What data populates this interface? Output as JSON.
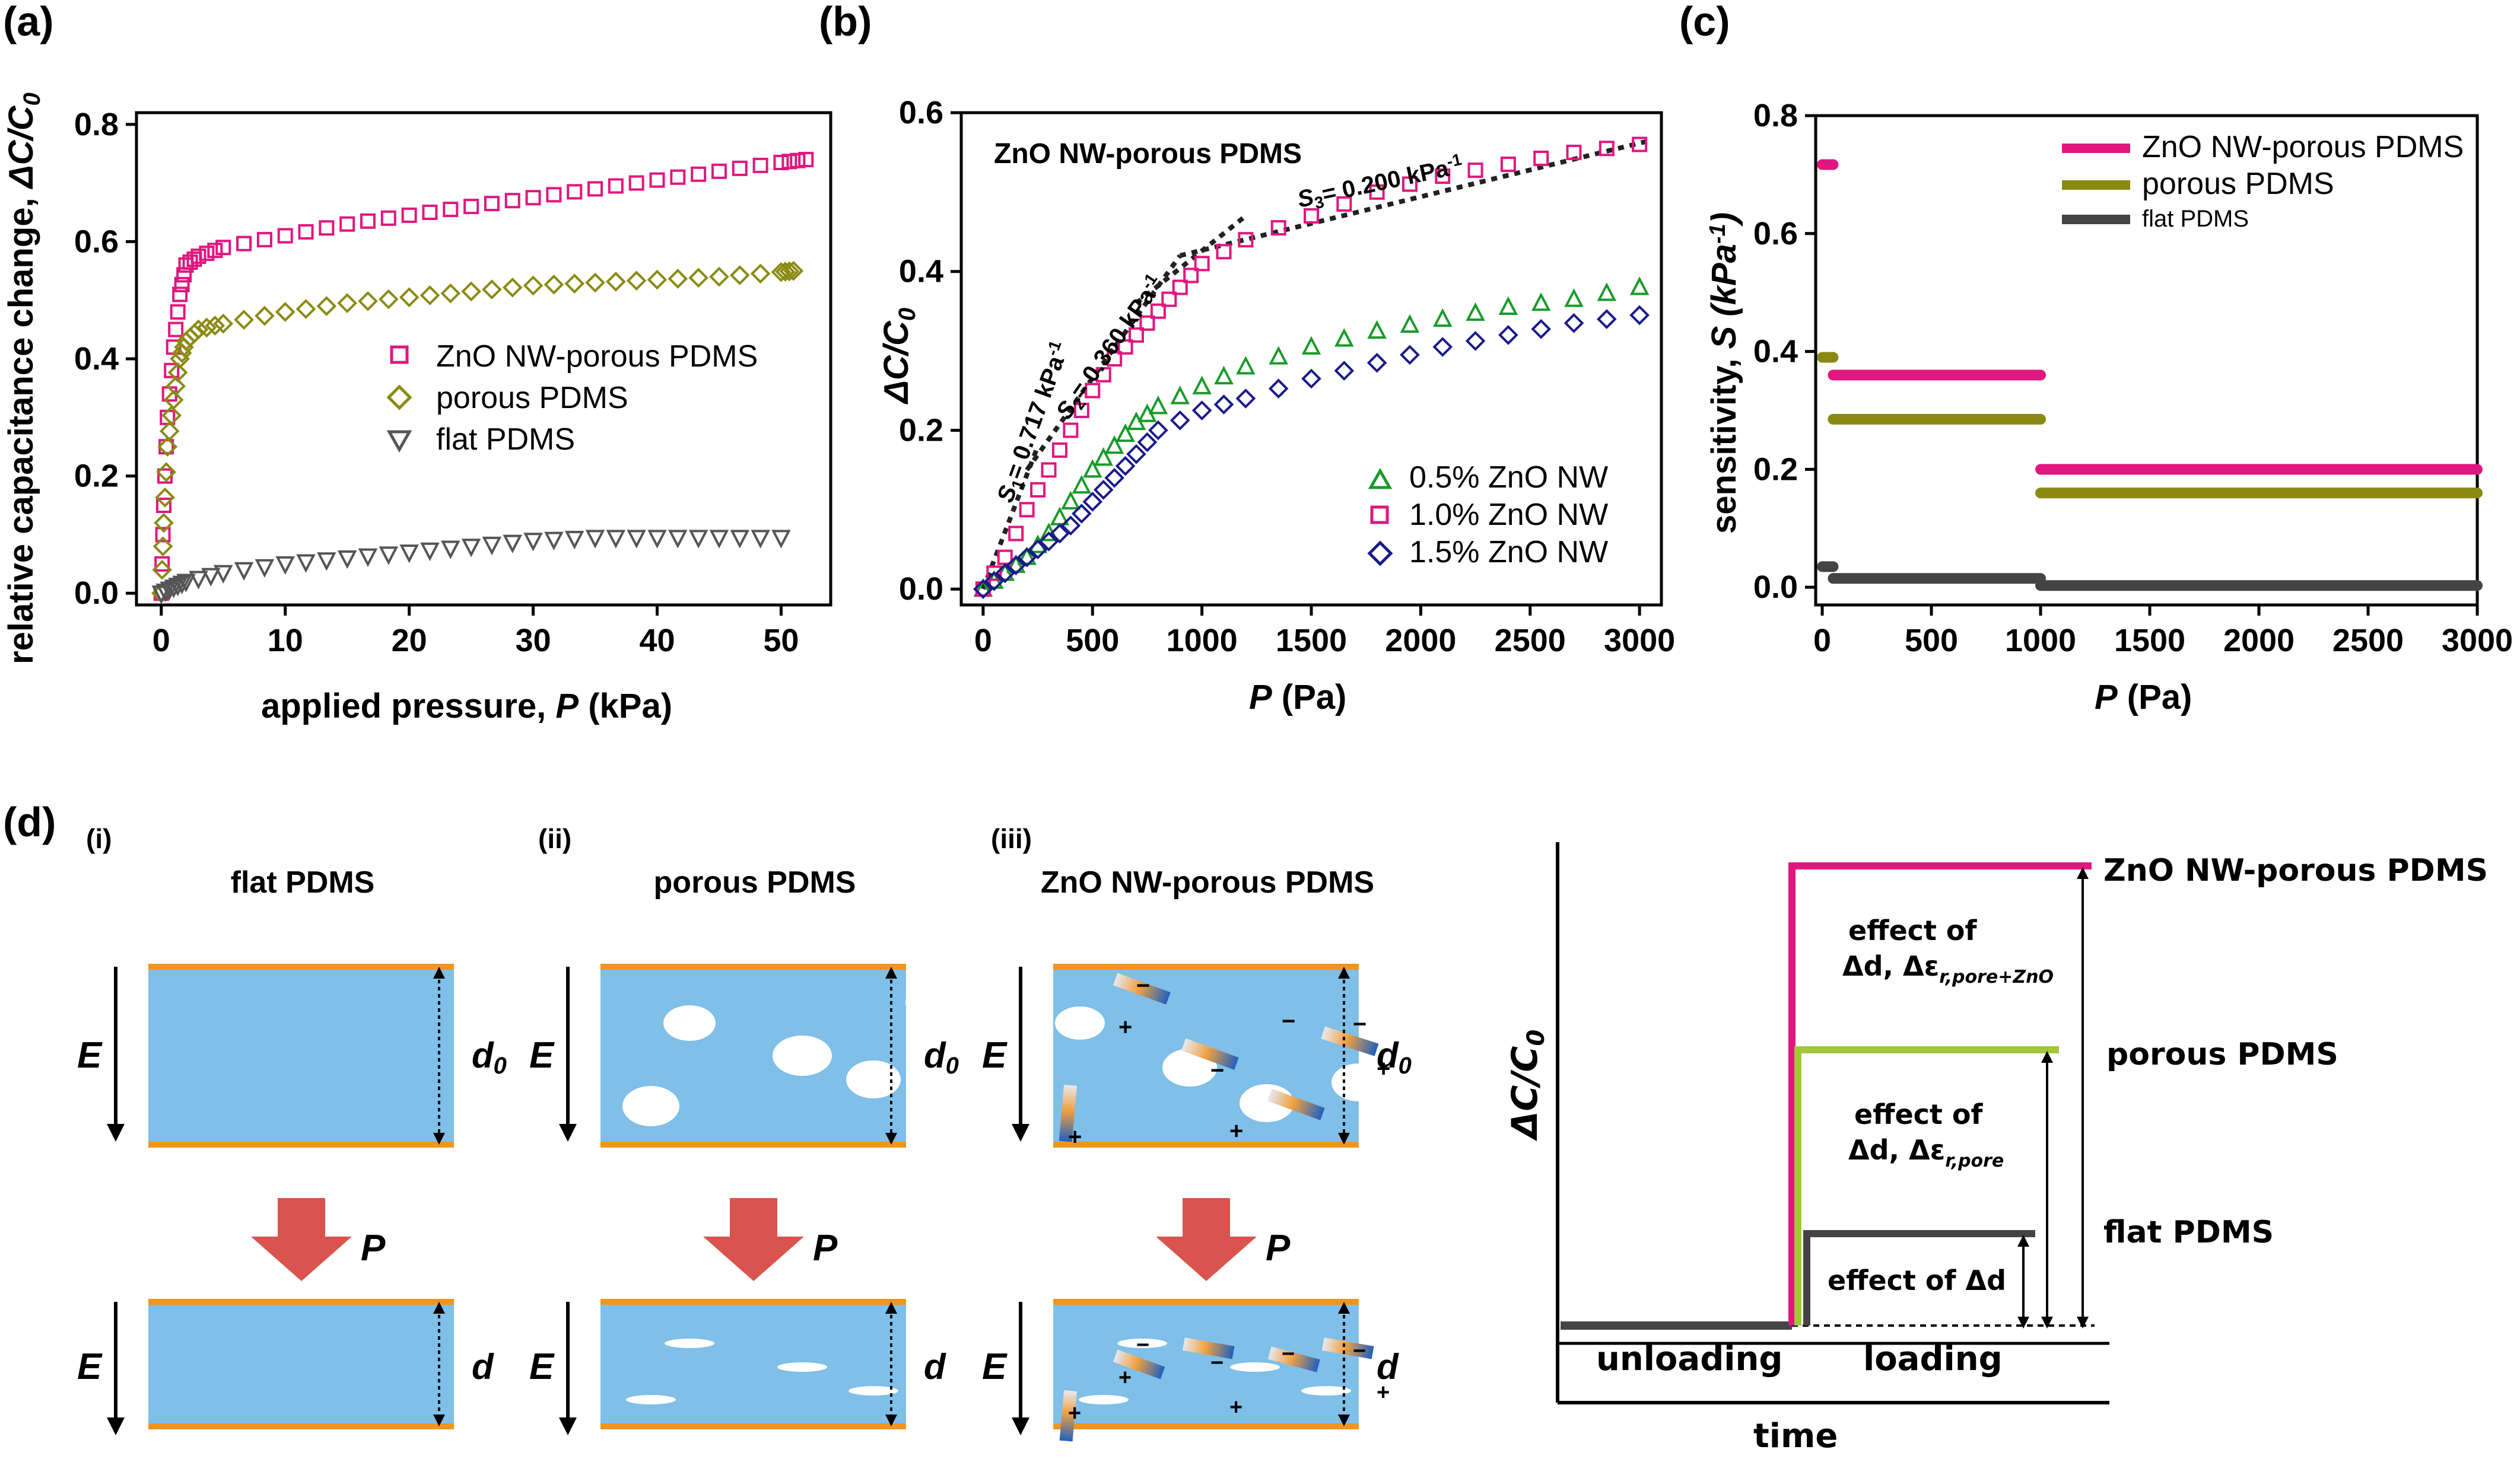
{
  "colors": {
    "magenta": "#e0177f",
    "olive": "#8a8a12",
    "olive_light": "#a4c639",
    "dark": "#444444",
    "green": "#1a9a2a",
    "blue": "#1a1a8a",
    "dielectric": "#7fbfe8",
    "electrode": "#f0951e",
    "arrow": "#d9534f"
  },
  "panels": {
    "a": "(a)",
    "b": "(b)",
    "c": "(c)",
    "d": "(d)"
  },
  "chart_data": [
    {
      "id": "a",
      "type": "scatter",
      "title": "",
      "xlabel_text": "applied pressure, ",
      "xlabel_var": "P",
      "xlabel_unit": " (kPa)",
      "ylabel_text": "relative capacitance change, ",
      "ylabel_var": "ΔC/C",
      "ylabel_sub": "0",
      "xlim": [
        -2,
        54
      ],
      "ylim": [
        -0.02,
        0.82
      ],
      "xticks": [
        0,
        10,
        20,
        30,
        40,
        50
      ],
      "yticks": [
        0.0,
        0.2,
        0.4,
        0.6,
        0.8
      ],
      "ytick_labels": [
        "0.0",
        "0.2",
        "0.4",
        "0.6",
        "0.8"
      ],
      "legend": [
        "ZnO NW-porous PDMS",
        "porous PDMS",
        "flat PDMS"
      ],
      "series": [
        {
          "name": "ZnO NW-porous PDMS",
          "marker": "square",
          "color": "#e0177f",
          "x": [
            0,
            0.2,
            0.5,
            1,
            1.5,
            2,
            3,
            5,
            10,
            15,
            20,
            25,
            30,
            35,
            40,
            45,
            50,
            52
          ],
          "y": [
            0.0,
            0.15,
            0.3,
            0.42,
            0.51,
            0.56,
            0.575,
            0.59,
            0.61,
            0.63,
            0.645,
            0.66,
            0.675,
            0.69,
            0.705,
            0.72,
            0.735,
            0.74
          ]
        },
        {
          "name": "porous PDMS",
          "marker": "diamond",
          "color": "#8a8a12",
          "x": [
            0,
            0.2,
            0.5,
            1,
            1.5,
            2,
            3,
            5,
            10,
            15,
            20,
            25,
            30,
            35,
            40,
            45,
            50,
            51
          ],
          "y": [
            0.0,
            0.12,
            0.25,
            0.33,
            0.4,
            0.43,
            0.45,
            0.46,
            0.48,
            0.495,
            0.505,
            0.515,
            0.525,
            0.53,
            0.535,
            0.54,
            0.548,
            0.55
          ]
        },
        {
          "name": "flat PDMS",
          "marker": "triangle-down",
          "color": "#555555",
          "x": [
            0,
            1,
            2,
            5,
            10,
            15,
            20,
            25,
            30,
            35,
            40,
            45,
            50
          ],
          "y": [
            0.0,
            0.01,
            0.02,
            0.035,
            0.05,
            0.06,
            0.07,
            0.08,
            0.09,
            0.095,
            0.095,
            0.095,
            0.095
          ]
        }
      ]
    },
    {
      "id": "b",
      "type": "scatter",
      "title": "ZnO NW-porous PDMS",
      "xlabel_var": "P",
      "xlabel_unit": " (Pa)",
      "ylabel_var": "ΔC/C",
      "ylabel_sub": "0",
      "xlim": [
        -100,
        3100
      ],
      "ylim": [
        -0.02,
        0.6
      ],
      "xticks": [
        0,
        500,
        1000,
        1500,
        2000,
        2500,
        3000
      ],
      "yticks": [
        0.0,
        0.2,
        0.4,
        0.6
      ],
      "ytick_labels": [
        "0.0",
        "0.2",
        "0.4",
        "0.6"
      ],
      "legend": [
        "0.5% ZnO NW",
        "1.0% ZnO NW",
        "1.5% ZnO NW"
      ],
      "fit_labels": [
        {
          "sym": "S",
          "sub": "1",
          "val": "= 0.717 kPa",
          "sup": "-1"
        },
        {
          "sym": "S",
          "sub": "2",
          "val": "= 0.360 kPa",
          "sup": "-1"
        },
        {
          "sym": "S",
          "sub": "3",
          "val": "= 0.200 kPa",
          "sup": "-1"
        }
      ],
      "fit_lines": [
        {
          "x": [
            0,
            250
          ],
          "y": [
            0.0,
            0.18
          ]
        },
        {
          "x": [
            200,
            900
          ],
          "y": [
            0.15,
            0.42
          ]
        },
        {
          "x": [
            700,
            1200
          ],
          "y": [
            0.36,
            0.47
          ]
        },
        {
          "x": [
            900,
            3050
          ],
          "y": [
            0.42,
            0.565
          ]
        }
      ],
      "series": [
        {
          "name": "0.5% ZnO NW",
          "marker": "triangle",
          "color": "#1a9a2a",
          "x": [
            0,
            100,
            200,
            300,
            400,
            500,
            600,
            700,
            800,
            1000,
            1200,
            1500,
            1800,
            2100,
            2400,
            2700,
            3000
          ],
          "y": [
            0.0,
            0.02,
            0.04,
            0.07,
            0.11,
            0.15,
            0.18,
            0.21,
            0.23,
            0.255,
            0.28,
            0.305,
            0.325,
            0.34,
            0.355,
            0.365,
            0.38
          ]
        },
        {
          "name": "1.0% ZnO NW",
          "marker": "square",
          "color": "#e0177f",
          "x": [
            0,
            100,
            200,
            300,
            400,
            500,
            600,
            700,
            800,
            900,
            1000,
            1200,
            1500,
            1800,
            2100,
            2400,
            2700,
            3000
          ],
          "y": [
            0.0,
            0.04,
            0.1,
            0.15,
            0.2,
            0.25,
            0.29,
            0.32,
            0.35,
            0.38,
            0.41,
            0.44,
            0.47,
            0.5,
            0.52,
            0.535,
            0.55,
            0.56
          ]
        },
        {
          "name": "1.5% ZnO NW",
          "marker": "diamond",
          "color": "#1a1a8a",
          "x": [
            0,
            100,
            200,
            300,
            400,
            500,
            600,
            700,
            800,
            1000,
            1200,
            1500,
            1800,
            2100,
            2400,
            2700,
            3000
          ],
          "y": [
            0.0,
            0.02,
            0.04,
            0.06,
            0.08,
            0.11,
            0.14,
            0.17,
            0.2,
            0.225,
            0.24,
            0.265,
            0.285,
            0.305,
            0.32,
            0.335,
            0.345
          ]
        }
      ]
    },
    {
      "id": "c",
      "type": "line",
      "title": "",
      "xlabel_var": "P",
      "xlabel_unit": " (Pa)",
      "ylabel_text": "sensitivity, ",
      "ylabel_var": "S",
      "ylabel_unit": " (kPa",
      "ylabel_sup": "-1",
      "xlim": [
        -30,
        3000
      ],
      "ylim": [
        -0.03,
        0.8
      ],
      "xticks": [
        0,
        500,
        1000,
        1500,
        2000,
        2500,
        3000
      ],
      "yticks": [
        0.0,
        0.2,
        0.4,
        0.6,
        0.8
      ],
      "ytick_labels": [
        "0.0",
        "0.2",
        "0.4",
        "0.6",
        "0.8"
      ],
      "legend": [
        "ZnO NW-porous PDMS",
        "porous PDMS",
        "flat PDMS"
      ],
      "series": [
        {
          "name": "ZnO NW-porous PDMS",
          "color": "#e0177f",
          "segments": [
            {
              "x": [
                0,
                50
              ],
              "y": 0.717
            },
            {
              "x": [
                50,
                1000
              ],
              "y": 0.36
            },
            {
              "x": [
                1000,
                3000
              ],
              "y": 0.2
            }
          ]
        },
        {
          "name": "porous PDMS",
          "color": "#8a8a12",
          "segments": [
            {
              "x": [
                0,
                50
              ],
              "y": 0.39
            },
            {
              "x": [
                50,
                1000
              ],
              "y": 0.285
            },
            {
              "x": [
                1000,
                3000
              ],
              "y": 0.16
            }
          ]
        },
        {
          "name": "flat PDMS",
          "color": "#444444",
          "segments": [
            {
              "x": [
                0,
                50
              ],
              "y": 0.035
            },
            {
              "x": [
                50,
                1000
              ],
              "y": 0.015
            },
            {
              "x": [
                1000,
                3000
              ],
              "y": 0.003
            }
          ]
        }
      ]
    },
    {
      "id": "d-step",
      "type": "line",
      "title": "",
      "xlabel": "time",
      "ylabel_var": "ΔC/C",
      "ylabel_sub": "0",
      "phase_labels": [
        "unloading",
        "loading"
      ],
      "series": [
        {
          "name": "ZnO NW-porous PDMS",
          "color": "#e0177f",
          "level": 1.0,
          "effect_line1": "effect of",
          "effect_line2": "Δd, Δε",
          "effect_sub": "r,pore+ZnO"
        },
        {
          "name": "porous PDMS",
          "color": "#a4c639",
          "level": 0.6,
          "effect_line1": "effect of",
          "effect_line2": "Δd, Δε",
          "effect_sub": "r,pore"
        },
        {
          "name": "flat PDMS",
          "color": "#444444",
          "level": 0.2,
          "effect_line1": "effect of Δd"
        }
      ]
    }
  ],
  "schematic": {
    "panels": [
      {
        "roman": "(i)",
        "title": "flat PDMS",
        "d_top": "d",
        "d_top_sub": "0",
        "d_bottom": "d"
      },
      {
        "roman": "(ii)",
        "title": "porous PDMS",
        "d_top": "d",
        "d_top_sub": "0",
        "d_bottom": "d"
      },
      {
        "roman": "(iii)",
        "title": "ZnO NW-porous PDMS",
        "d_top": "d",
        "d_top_sub": "0",
        "d_bottom": "d"
      }
    ],
    "field_label": "E",
    "pressure_label": "P",
    "minus": "−",
    "plus": "+"
  }
}
